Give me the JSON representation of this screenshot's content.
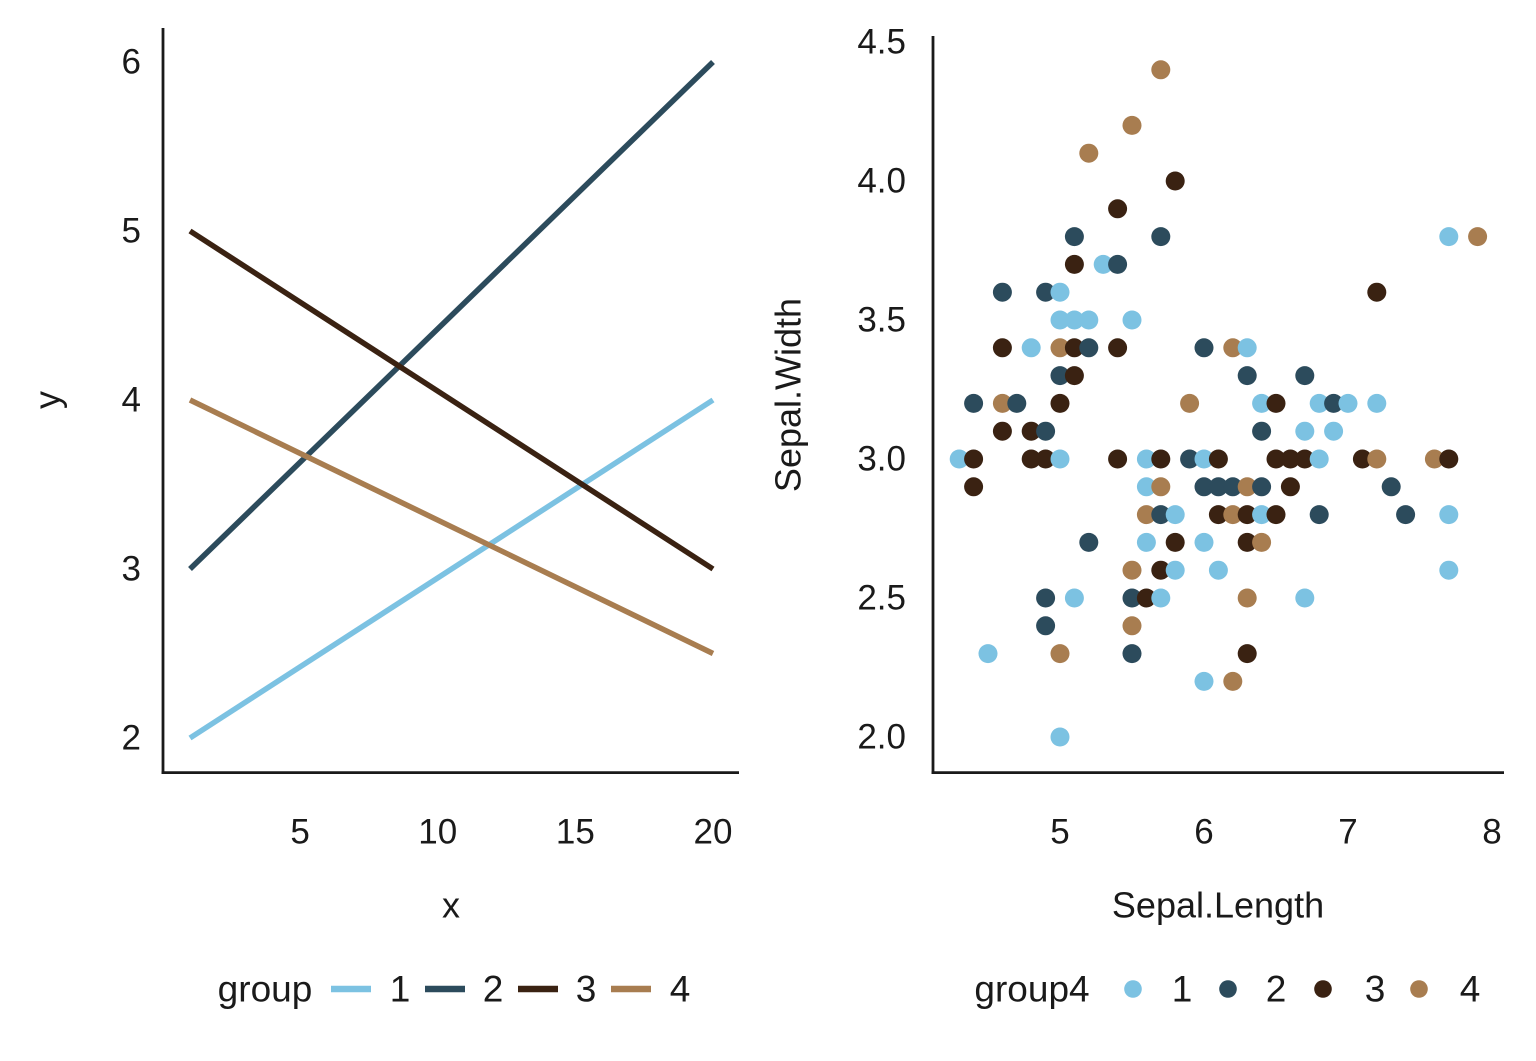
{
  "app": {
    "background": "#FFFFFF",
    "text_color": "#1A1A1A",
    "axis_color": "#1A1A1A"
  },
  "group_colors": {
    "1": "#7CC2E2",
    "2": "#2C4B5C",
    "3": "#3A2212",
    "4": "#A87D50"
  },
  "chart_data": [
    {
      "type": "line",
      "title": "",
      "xlabel": "x",
      "ylabel": "y",
      "xlim": [
        1,
        20
      ],
      "ylim": [
        2,
        6
      ],
      "x_ticks": [
        5,
        10,
        15,
        20
      ],
      "x_tick_labels": [
        "5",
        "10",
        "15",
        "20"
      ],
      "y_ticks": [
        2,
        3,
        4,
        5,
        6
      ],
      "y_tick_labels": [
        "2",
        "3",
        "4",
        "5",
        "6"
      ],
      "grid": false,
      "legend_position": "bottom",
      "legend_title": "group",
      "series": [
        {
          "name": "1",
          "group": "1",
          "points": [
            [
              1,
              2.0
            ],
            [
              20,
              4.0
            ]
          ]
        },
        {
          "name": "2",
          "group": "2",
          "points": [
            [
              1,
              3.0
            ],
            [
              20,
              6.0
            ]
          ]
        },
        {
          "name": "3",
          "group": "3",
          "points": [
            [
              1,
              5.0
            ],
            [
              20,
              3.0
            ]
          ]
        },
        {
          "name": "4",
          "group": "4",
          "points": [
            [
              1,
              4.0
            ],
            [
              20,
              2.5
            ]
          ]
        }
      ]
    },
    {
      "type": "scatter",
      "title": "",
      "xlabel": "Sepal.Length",
      "ylabel": "Sepal.Width",
      "xlim": [
        4.3,
        7.9
      ],
      "ylim": [
        2.0,
        4.5
      ],
      "x_ticks": [
        5,
        6,
        7,
        8
      ],
      "x_tick_labels": [
        "5",
        "6",
        "7",
        "8"
      ],
      "y_ticks": [
        2.0,
        2.5,
        3.0,
        3.5,
        4.0,
        4.5
      ],
      "y_tick_labels": [
        "2.0",
        "2.5",
        "3.0",
        "3.5",
        "4.0",
        "4.5"
      ],
      "grid": false,
      "legend_position": "bottom",
      "legend_title": "group4",
      "legend_entries": [
        "1",
        "2",
        "3",
        "4"
      ],
      "points": [
        [
          5.7,
          4.4,
          "4"
        ],
        [
          5.5,
          4.2,
          "4"
        ],
        [
          5.2,
          4.1,
          "4"
        ],
        [
          5.8,
          4.0,
          "3"
        ],
        [
          5.4,
          3.9,
          "3"
        ],
        [
          5.1,
          3.8,
          "2"
        ],
        [
          5.7,
          3.8,
          "2"
        ],
        [
          7.7,
          3.8,
          "1"
        ],
        [
          7.9,
          3.8,
          "4"
        ],
        [
          5.1,
          3.7,
          "3"
        ],
        [
          5.3,
          3.7,
          "1"
        ],
        [
          5.4,
          3.7,
          "2"
        ],
        [
          4.6,
          3.6,
          "2"
        ],
        [
          4.9,
          3.6,
          "2"
        ],
        [
          5.0,
          3.6,
          "1"
        ],
        [
          7.2,
          3.6,
          "3"
        ],
        [
          5.0,
          3.5,
          "1"
        ],
        [
          5.1,
          3.5,
          "1"
        ],
        [
          5.2,
          3.5,
          "1"
        ],
        [
          5.5,
          3.5,
          "1"
        ],
        [
          4.6,
          3.4,
          "3"
        ],
        [
          4.8,
          3.4,
          "1"
        ],
        [
          5.0,
          3.4,
          "4"
        ],
        [
          5.1,
          3.4,
          "3"
        ],
        [
          5.2,
          3.4,
          "2"
        ],
        [
          5.4,
          3.4,
          "3"
        ],
        [
          6.0,
          3.4,
          "2"
        ],
        [
          6.2,
          3.4,
          "4"
        ],
        [
          6.3,
          3.4,
          "1"
        ],
        [
          5.0,
          3.3,
          "2"
        ],
        [
          5.1,
          3.3,
          "3"
        ],
        [
          6.3,
          3.3,
          "2"
        ],
        [
          6.7,
          3.3,
          "2"
        ],
        [
          4.4,
          3.2,
          "2"
        ],
        [
          4.6,
          3.2,
          "4"
        ],
        [
          4.7,
          3.2,
          "2"
        ],
        [
          5.0,
          3.2,
          "3"
        ],
        [
          5.9,
          3.2,
          "4"
        ],
        [
          6.4,
          3.2,
          "1"
        ],
        [
          6.5,
          3.2,
          "3"
        ],
        [
          6.8,
          3.2,
          "1"
        ],
        [
          6.9,
          3.2,
          "2"
        ],
        [
          7.0,
          3.2,
          "1"
        ],
        [
          7.2,
          3.2,
          "1"
        ],
        [
          4.6,
          3.1,
          "3"
        ],
        [
          4.8,
          3.1,
          "3"
        ],
        [
          4.9,
          3.1,
          "2"
        ],
        [
          6.4,
          3.1,
          "2"
        ],
        [
          6.7,
          3.1,
          "1"
        ],
        [
          6.9,
          3.1,
          "1"
        ],
        [
          4.3,
          3.0,
          "1"
        ],
        [
          4.4,
          3.0,
          "3"
        ],
        [
          4.8,
          3.0,
          "3"
        ],
        [
          4.9,
          3.0,
          "3"
        ],
        [
          5.0,
          3.0,
          "1"
        ],
        [
          5.4,
          3.0,
          "3"
        ],
        [
          5.6,
          3.0,
          "1"
        ],
        [
          5.7,
          3.0,
          "3"
        ],
        [
          5.9,
          3.0,
          "2"
        ],
        [
          6.0,
          3.0,
          "1"
        ],
        [
          6.1,
          3.0,
          "3"
        ],
        [
          6.5,
          3.0,
          "3"
        ],
        [
          6.6,
          3.0,
          "3"
        ],
        [
          6.7,
          3.0,
          "3"
        ],
        [
          6.8,
          3.0,
          "1"
        ],
        [
          7.1,
          3.0,
          "3"
        ],
        [
          7.2,
          3.0,
          "4"
        ],
        [
          7.6,
          3.0,
          "4"
        ],
        [
          7.7,
          3.0,
          "3"
        ],
        [
          4.4,
          2.9,
          "3"
        ],
        [
          5.6,
          2.9,
          "1"
        ],
        [
          5.7,
          2.9,
          "4"
        ],
        [
          6.0,
          2.9,
          "2"
        ],
        [
          6.1,
          2.9,
          "2"
        ],
        [
          6.2,
          2.9,
          "2"
        ],
        [
          6.3,
          2.9,
          "4"
        ],
        [
          6.4,
          2.9,
          "2"
        ],
        [
          6.6,
          2.9,
          "3"
        ],
        [
          7.3,
          2.9,
          "2"
        ],
        [
          5.6,
          2.8,
          "4"
        ],
        [
          5.7,
          2.8,
          "2"
        ],
        [
          5.8,
          2.8,
          "1"
        ],
        [
          6.1,
          2.8,
          "3"
        ],
        [
          6.2,
          2.8,
          "4"
        ],
        [
          6.3,
          2.8,
          "3"
        ],
        [
          6.4,
          2.8,
          "1"
        ],
        [
          6.5,
          2.8,
          "3"
        ],
        [
          6.8,
          2.8,
          "2"
        ],
        [
          7.4,
          2.8,
          "2"
        ],
        [
          7.7,
          2.8,
          "1"
        ],
        [
          5.2,
          2.7,
          "2"
        ],
        [
          5.6,
          2.7,
          "1"
        ],
        [
          5.8,
          2.7,
          "3"
        ],
        [
          6.0,
          2.7,
          "1"
        ],
        [
          6.3,
          2.7,
          "3"
        ],
        [
          6.4,
          2.7,
          "4"
        ],
        [
          5.5,
          2.6,
          "4"
        ],
        [
          5.7,
          2.6,
          "3"
        ],
        [
          5.8,
          2.6,
          "1"
        ],
        [
          6.1,
          2.6,
          "1"
        ],
        [
          7.7,
          2.6,
          "1"
        ],
        [
          4.9,
          2.5,
          "2"
        ],
        [
          5.1,
          2.5,
          "1"
        ],
        [
          5.5,
          2.5,
          "2"
        ],
        [
          5.6,
          2.5,
          "3"
        ],
        [
          5.7,
          2.5,
          "1"
        ],
        [
          6.3,
          2.5,
          "4"
        ],
        [
          6.7,
          2.5,
          "1"
        ],
        [
          4.9,
          2.4,
          "2"
        ],
        [
          5.5,
          2.4,
          "4"
        ],
        [
          4.5,
          2.3,
          "1"
        ],
        [
          5.0,
          2.3,
          "4"
        ],
        [
          5.5,
          2.3,
          "2"
        ],
        [
          6.3,
          2.3,
          "3"
        ],
        [
          6.0,
          2.2,
          "1"
        ],
        [
          6.2,
          2.2,
          "4"
        ],
        [
          5.0,
          2.0,
          "1"
        ]
      ]
    }
  ]
}
